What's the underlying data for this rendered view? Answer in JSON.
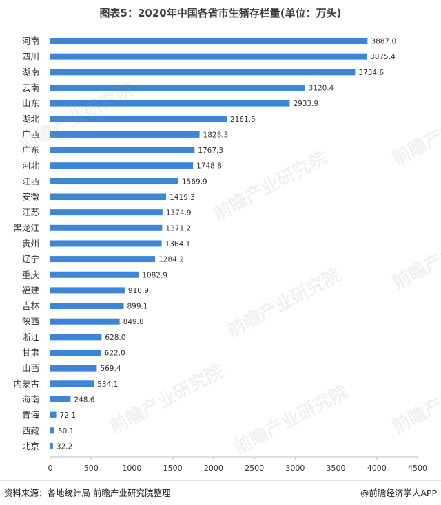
{
  "title": "图表5：2020年中国各省市生猪存栏量(单位：万头)",
  "source": "资料来源：各地统计局 前瞻产业研究院整理",
  "brand": "@前瞻经济学人APP",
  "watermark": "前瞻产业研究院",
  "colors": {
    "bar": "#3d85d8",
    "axis": "#bfbfbf",
    "text": "#333333"
  },
  "chart_data": {
    "type": "bar",
    "orientation": "horizontal",
    "categories": [
      "河南",
      "四川",
      "湖南",
      "云南",
      "山东",
      "湖北",
      "广西",
      "广东",
      "河北",
      "江西",
      "安徽",
      "江苏",
      "黑龙江",
      "贵州",
      "辽宁",
      "重庆",
      "福建",
      "吉林",
      "陕西",
      "浙江",
      "甘肃",
      "山西",
      "内蒙古",
      "海南",
      "青海",
      "西藏",
      "北京"
    ],
    "values": [
      3887.0,
      3875.4,
      3734.6,
      3120.4,
      2933.9,
      2161.5,
      1828.3,
      1767.3,
      1748.8,
      1569.9,
      1419.3,
      1374.9,
      1371.2,
      1364.1,
      1284.2,
      1082.9,
      910.9,
      899.1,
      849.8,
      628.0,
      622.0,
      569.4,
      534.1,
      248.6,
      72.1,
      50.1,
      32.2
    ],
    "data_labels": [
      "3887.0",
      "3875.4",
      "3734.6",
      "3120.4",
      "2933.9",
      "2161.5",
      "1828.3",
      "1767.3",
      "1748.8",
      "1569.9",
      "1419.3",
      "1374.9",
      "1371.2",
      "1364.1",
      "1284.2",
      "1082.9",
      "910.9",
      "899.1",
      "849.8",
      "628.0",
      "622.0",
      "569.4",
      "534.1",
      "248.6",
      "72.1",
      "50.1",
      "32.2"
    ],
    "xlim": [
      0,
      4500
    ],
    "xticks": [
      0,
      500,
      1000,
      1500,
      2000,
      2500,
      3000,
      3500,
      4000,
      4500
    ],
    "grid": false,
    "legend": "none"
  }
}
